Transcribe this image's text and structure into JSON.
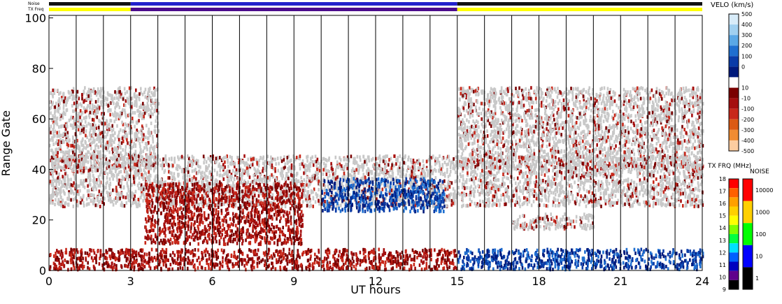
{
  "chart_data": {
    "type": "heatmap",
    "xlabel": "UT hours",
    "ylabel": "Range Gate",
    "xlim": [
      0,
      24
    ],
    "ylim": [
      0,
      101
    ],
    "x_ticks": [
      "0",
      "3",
      "6",
      "9",
      "12",
      "15",
      "18",
      "21",
      "24"
    ],
    "y_ticks": [
      "0",
      "20",
      "40",
      "60",
      "80",
      "100"
    ],
    "vertical_lines_every_hours": 1,
    "grid": false,
    "top_bars": {
      "noise_label": "Noise",
      "txfreq_label": "TX Freq",
      "segments": [
        {
          "start": 0,
          "end": 3,
          "noise_color": "#111111",
          "freq_color": "#ffff00"
        },
        {
          "start": 3,
          "end": 15,
          "noise_color": "#2222cc",
          "freq_color": "#4b0c8c"
        },
        {
          "start": 15,
          "end": 24,
          "noise_color": "#111111",
          "freq_color": "#ffff00"
        }
      ]
    },
    "velocity_scale": {
      "title": "VELO (km/s)",
      "colors": [
        "#d8ecf9",
        "#a0d0f0",
        "#5aa8e6",
        "#1f6fd0",
        "#0a3ca8",
        "#001a7c",
        "#ffffff",
        "#7a0000",
        "#a50f0f",
        "#c8281a",
        "#dc5a14",
        "#f08c32",
        "#fccda0"
      ],
      "labels": [
        "500",
        "400",
        "300",
        "200",
        "100",
        "0",
        "10",
        "-10",
        "-100",
        "-200",
        "-300",
        "-400",
        "-500"
      ]
    },
    "txfreq_scale": {
      "title": "TX FRQ (MHz)",
      "colors": [
        "#ff0000",
        "#ff6000",
        "#ffa000",
        "#ffd000",
        "#ffff00",
        "#80ff00",
        "#00ff40",
        "#00e0ff",
        "#0060ff",
        "#0000c0",
        "#60008c",
        "#000000"
      ],
      "labels": [
        "18",
        "17",
        "16",
        "15",
        "14",
        "13",
        "12",
        "11",
        "10",
        "9"
      ]
    },
    "noise_scale": {
      "title": "NOISE",
      "colors": [
        "#ff0000",
        "#ffd000",
        "#00ff00",
        "#0000ff",
        "#000000"
      ],
      "labels": [
        "10000",
        "1000",
        "100",
        "10",
        "1"
      ]
    },
    "regions": [
      {
        "name": "ground scatter band lower",
        "x": [
          0,
          24
        ],
        "y": [
          25,
          45
        ],
        "value_class": "ground"
      },
      {
        "name": "ground scatter upper left",
        "x": [
          0,
          4
        ],
        "y": [
          40,
          72
        ],
        "value_class": "ground"
      },
      {
        "name": "ground scatter upper right",
        "x": [
          15,
          24
        ],
        "y": [
          40,
          72
        ],
        "value_class": "ground"
      },
      {
        "name": "ground scatter patch",
        "x": [
          17,
          20
        ],
        "y": [
          16,
          22
        ],
        "value_class": "ground"
      },
      {
        "name": "negative velocity arc",
        "x": [
          3.5,
          9.3
        ],
        "y": [
          10,
          34
        ],
        "value_class": "-150"
      },
      {
        "name": "positive velocity patch",
        "x": [
          10,
          14.5
        ],
        "y": [
          23,
          36
        ],
        "value_class": "150"
      },
      {
        "name": "near-range scatter left",
        "x": [
          0,
          15
        ],
        "y": [
          0,
          8
        ],
        "value_class": "-150"
      },
      {
        "name": "near-range scatter right",
        "x": [
          15,
          24
        ],
        "y": [
          0,
          8
        ],
        "value_class": "150"
      }
    ]
  }
}
